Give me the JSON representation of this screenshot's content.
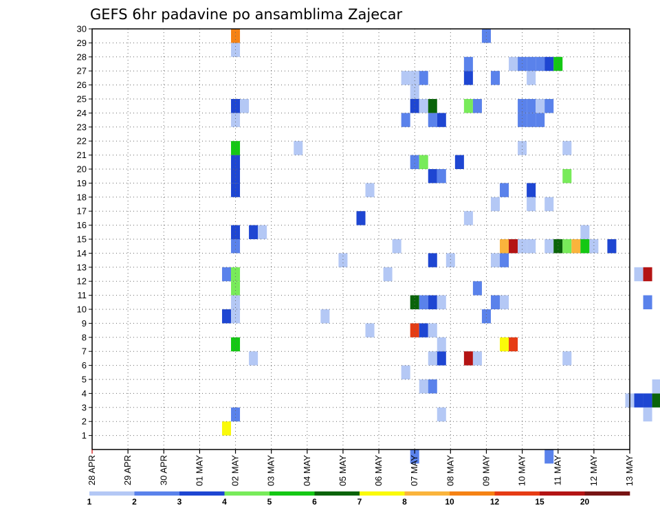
{
  "chart_data": {
    "type": "heatmap",
    "title": "GEFS 6hr padavine po ansamblima Zajecar",
    "xlabel": "",
    "ylabel": "",
    "x_ticks": [
      "28 APR",
      "29 APR",
      "30 APR",
      "01 MAY",
      "02 MAY",
      "03 MAY",
      "04 MAY",
      "05 MAY",
      "06 MAY",
      "07 MAY",
      "08 MAY",
      "09 MAY",
      "10 MAY",
      "11 MAY",
      "12 MAY",
      "13 MAY"
    ],
    "y_ticks": [
      "1",
      "2",
      "3",
      "4",
      "5",
      "6",
      "7",
      "8",
      "9",
      "10",
      "11",
      "12",
      "13",
      "14",
      "15",
      "16",
      "17",
      "18",
      "19",
      "20",
      "21",
      "22",
      "23",
      "24",
      "25",
      "26",
      "27",
      "28",
      "29",
      "30"
    ],
    "ylim": [
      0,
      30
    ],
    "x_unit": "6-hour step from 28 APR 00z",
    "steps_per_day": 4,
    "grid": true,
    "colorbar": {
      "labels": [
        "1",
        "2",
        "3",
        "4",
        "5",
        "6",
        "7",
        "8",
        "10",
        "12",
        "15",
        "20"
      ],
      "colors": [
        "#b4c8f5",
        "#5a82eb",
        "#1e46d2",
        "#78eb5a",
        "#14c814",
        "#0a640a",
        "#fafa0a",
        "#fab43c",
        "#f58214",
        "#e63c14",
        "#b41414",
        "#781414"
      ]
    },
    "cells": [
      {
        "x": 15,
        "y": 1,
        "c": 6
      },
      {
        "x": 16,
        "y": 2,
        "c": 1
      },
      {
        "x": 39,
        "y": 2,
        "c": 0
      },
      {
        "x": 62,
        "y": 2,
        "c": 0
      },
      {
        "x": 60,
        "y": 3,
        "c": 0
      },
      {
        "x": 61,
        "y": 3,
        "c": 2
      },
      {
        "x": 62,
        "y": 3,
        "c": 2
      },
      {
        "x": 63,
        "y": 3,
        "c": 5
      },
      {
        "x": 37,
        "y": 4,
        "c": 0
      },
      {
        "x": 38,
        "y": 4,
        "c": 1
      },
      {
        "x": 63,
        "y": 4,
        "c": 0
      },
      {
        "x": 35,
        "y": 5,
        "c": 0
      },
      {
        "x": 18,
        "y": 6,
        "c": 0
      },
      {
        "x": 38,
        "y": 6,
        "c": 0
      },
      {
        "x": 39,
        "y": 6,
        "c": 2
      },
      {
        "x": 42,
        "y": 6,
        "c": 10
      },
      {
        "x": 43,
        "y": 6,
        "c": 0
      },
      {
        "x": 53,
        "y": 6,
        "c": 0
      },
      {
        "x": 70,
        "y": 6,
        "c": 0
      },
      {
        "x": 71,
        "y": 6,
        "c": 2
      },
      {
        "x": 72,
        "y": 6,
        "c": 1
      },
      {
        "x": 73,
        "y": 6,
        "c": 2
      },
      {
        "x": 16,
        "y": 7,
        "c": 4
      },
      {
        "x": 39,
        "y": 7,
        "c": 0
      },
      {
        "x": 46,
        "y": 7,
        "c": 6
      },
      {
        "x": 47,
        "y": 7,
        "c": 9
      },
      {
        "x": 79,
        "y": 7,
        "c": 5
      },
      {
        "x": 31,
        "y": 8,
        "c": 0
      },
      {
        "x": 36,
        "y": 8,
        "c": 9
      },
      {
        "x": 37,
        "y": 8,
        "c": 2
      },
      {
        "x": 38,
        "y": 8,
        "c": 0
      },
      {
        "x": 69,
        "y": 8,
        "c": 0
      },
      {
        "x": 70,
        "y": 8,
        "c": 0
      },
      {
        "x": 79,
        "y": 8,
        "c": 0
      },
      {
        "x": 15,
        "y": 9,
        "c": 2
      },
      {
        "x": 16,
        "y": 9,
        "c": 0
      },
      {
        "x": 26,
        "y": 9,
        "c": 0
      },
      {
        "x": 44,
        "y": 9,
        "c": 1
      },
      {
        "x": 16,
        "y": 10,
        "c": 0
      },
      {
        "x": 36,
        "y": 10,
        "c": 5
      },
      {
        "x": 37,
        "y": 10,
        "c": 1
      },
      {
        "x": 38,
        "y": 10,
        "c": 2
      },
      {
        "x": 39,
        "y": 10,
        "c": 0
      },
      {
        "x": 45,
        "y": 10,
        "c": 1
      },
      {
        "x": 46,
        "y": 10,
        "c": 0
      },
      {
        "x": 62,
        "y": 10,
        "c": 1
      },
      {
        "x": 16,
        "y": 11,
        "c": 3
      },
      {
        "x": 43,
        "y": 11,
        "c": 1
      },
      {
        "x": 72,
        "y": 11,
        "c": 4
      },
      {
        "x": 73,
        "y": 11,
        "c": 2
      },
      {
        "x": 75,
        "y": 11,
        "c": 0
      },
      {
        "x": 15,
        "y": 12,
        "c": 1
      },
      {
        "x": 16,
        "y": 12,
        "c": 3
      },
      {
        "x": 33,
        "y": 12,
        "c": 0
      },
      {
        "x": 61,
        "y": 12,
        "c": 0
      },
      {
        "x": 62,
        "y": 12,
        "c": 10
      },
      {
        "x": 78,
        "y": 12,
        "c": 4
      },
      {
        "x": 28,
        "y": 13,
        "c": 0
      },
      {
        "x": 38,
        "y": 13,
        "c": 2
      },
      {
        "x": 40,
        "y": 13,
        "c": 0
      },
      {
        "x": 45,
        "y": 13,
        "c": 0
      },
      {
        "x": 46,
        "y": 13,
        "c": 1
      },
      {
        "x": 69,
        "y": 13,
        "c": 0
      },
      {
        "x": 16,
        "y": 14,
        "c": 1
      },
      {
        "x": 34,
        "y": 14,
        "c": 0
      },
      {
        "x": 46,
        "y": 14,
        "c": 7
      },
      {
        "x": 47,
        "y": 14,
        "c": 10
      },
      {
        "x": 48,
        "y": 14,
        "c": 0
      },
      {
        "x": 49,
        "y": 14,
        "c": 0
      },
      {
        "x": 51,
        "y": 14,
        "c": 0
      },
      {
        "x": 52,
        "y": 14,
        "c": 5
      },
      {
        "x": 53,
        "y": 14,
        "c": 3
      },
      {
        "x": 54,
        "y": 14,
        "c": 7
      },
      {
        "x": 55,
        "y": 14,
        "c": 4
      },
      {
        "x": 56,
        "y": 14,
        "c": 0
      },
      {
        "x": 58,
        "y": 14,
        "c": 2
      },
      {
        "x": 16,
        "y": 15,
        "c": 2
      },
      {
        "x": 18,
        "y": 15,
        "c": 2
      },
      {
        "x": 19,
        "y": 15,
        "c": 0
      },
      {
        "x": 55,
        "y": 15,
        "c": 0
      },
      {
        "x": 30,
        "y": 16,
        "c": 2
      },
      {
        "x": 42,
        "y": 16,
        "c": 0
      },
      {
        "x": 78,
        "y": 16,
        "c": 0
      },
      {
        "x": 79,
        "y": 16,
        "c": 4
      },
      {
        "x": 45,
        "y": 17,
        "c": 0
      },
      {
        "x": 49,
        "y": 17,
        "c": 0
      },
      {
        "x": 51,
        "y": 17,
        "c": 0
      },
      {
        "x": 69,
        "y": 17,
        "c": 0
      },
      {
        "x": 70,
        "y": 17,
        "c": 0
      },
      {
        "x": 71,
        "y": 17,
        "c": 5
      },
      {
        "x": 72,
        "y": 17,
        "c": 2
      },
      {
        "x": 73,
        "y": 17,
        "c": 0
      },
      {
        "x": 16,
        "y": 18,
        "c": 2
      },
      {
        "x": 31,
        "y": 18,
        "c": 0
      },
      {
        "x": 46,
        "y": 18,
        "c": 1
      },
      {
        "x": 49,
        "y": 18,
        "c": 2
      },
      {
        "x": 68,
        "y": 18,
        "c": 0
      },
      {
        "x": 69,
        "y": 18,
        "c": 2
      },
      {
        "x": 16,
        "y": 19,
        "c": 2
      },
      {
        "x": 38,
        "y": 19,
        "c": 2
      },
      {
        "x": 39,
        "y": 19,
        "c": 1
      },
      {
        "x": 53,
        "y": 19,
        "c": 3
      },
      {
        "x": 16,
        "y": 20,
        "c": 2
      },
      {
        "x": 36,
        "y": 20,
        "c": 1
      },
      {
        "x": 37,
        "y": 20,
        "c": 3
      },
      {
        "x": 41,
        "y": 20,
        "c": 2
      },
      {
        "x": 16,
        "y": 21,
        "c": 4
      },
      {
        "x": 23,
        "y": 21,
        "c": 0
      },
      {
        "x": 48,
        "y": 21,
        "c": 0
      },
      {
        "x": 53,
        "y": 21,
        "c": 0
      },
      {
        "x": 69,
        "y": 21,
        "c": 1
      },
      {
        "x": 70,
        "y": 21,
        "c": 3
      },
      {
        "x": 71,
        "y": 21,
        "c": 1
      },
      {
        "x": 16,
        "y": 23,
        "c": 0
      },
      {
        "x": 35,
        "y": 23,
        "c": 1
      },
      {
        "x": 38,
        "y": 23,
        "c": 1
      },
      {
        "x": 39,
        "y": 23,
        "c": 2
      },
      {
        "x": 48,
        "y": 23,
        "c": 1
      },
      {
        "x": 49,
        "y": 23,
        "c": 1
      },
      {
        "x": 50,
        "y": 23,
        "c": 1
      },
      {
        "x": 69,
        "y": 23,
        "c": 0
      },
      {
        "x": 16,
        "y": 24,
        "c": 2
      },
      {
        "x": 17,
        "y": 24,
        "c": 0
      },
      {
        "x": 36,
        "y": 24,
        "c": 2
      },
      {
        "x": 37,
        "y": 24,
        "c": 0
      },
      {
        "x": 38,
        "y": 24,
        "c": 5
      },
      {
        "x": 42,
        "y": 24,
        "c": 3
      },
      {
        "x": 43,
        "y": 24,
        "c": 1
      },
      {
        "x": 48,
        "y": 24,
        "c": 1
      },
      {
        "x": 49,
        "y": 24,
        "c": 1
      },
      {
        "x": 50,
        "y": 24,
        "c": 0
      },
      {
        "x": 51,
        "y": 24,
        "c": 1
      },
      {
        "x": 36,
        "y": 25,
        "c": 0
      },
      {
        "x": 35,
        "y": 26,
        "c": 0
      },
      {
        "x": 36,
        "y": 26,
        "c": 0
      },
      {
        "x": 37,
        "y": 26,
        "c": 1
      },
      {
        "x": 42,
        "y": 26,
        "c": 2
      },
      {
        "x": 45,
        "y": 26,
        "c": 1
      },
      {
        "x": 49,
        "y": 26,
        "c": 0
      },
      {
        "x": 72,
        "y": 26,
        "c": 2
      },
      {
        "x": 73,
        "y": 26,
        "c": 1
      },
      {
        "x": 42,
        "y": 27,
        "c": 1
      },
      {
        "x": 47,
        "y": 27,
        "c": 0
      },
      {
        "x": 48,
        "y": 27,
        "c": 1
      },
      {
        "x": 49,
        "y": 27,
        "c": 1
      },
      {
        "x": 50,
        "y": 27,
        "c": 1
      },
      {
        "x": 51,
        "y": 27,
        "c": 2
      },
      {
        "x": 52,
        "y": 27,
        "c": 4
      },
      {
        "x": 70,
        "y": 27,
        "c": 0
      },
      {
        "x": 16,
        "y": 28,
        "c": 0
      },
      {
        "x": 16,
        "y": 29,
        "c": 8
      },
      {
        "x": 44,
        "y": 29,
        "c": 1
      },
      {
        "x": 66,
        "y": 29,
        "c": 1
      },
      {
        "x": 68,
        "y": 29,
        "c": 1
      },
      {
        "x": 70,
        "y": 29,
        "c": 1
      },
      {
        "x": 72,
        "y": 29,
        "c": 0
      },
      {
        "x": 36,
        "y": -1,
        "c": 1
      },
      {
        "x": 51,
        "y": -1,
        "c": 1
      }
    ]
  }
}
